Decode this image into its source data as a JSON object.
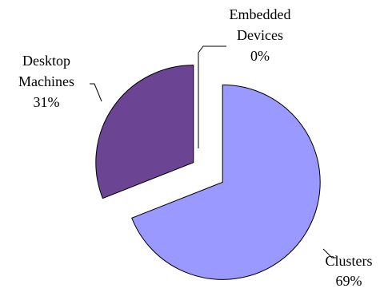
{
  "chart_data": {
    "type": "pie",
    "exploded": true,
    "legend": "none",
    "slices": [
      {
        "label_lines": [
          "Clusters"
        ],
        "percent_label": "69%",
        "value": 69,
        "color": "#9999ff"
      },
      {
        "label_lines": [
          "Desktop",
          "Machines"
        ],
        "percent_label": "31%",
        "value": 31,
        "color": "#6b4594"
      },
      {
        "label_lines": [
          "Embedded",
          "Devices"
        ],
        "percent_label": "0%",
        "value": 0,
        "color": "#ffffff"
      }
    ]
  }
}
